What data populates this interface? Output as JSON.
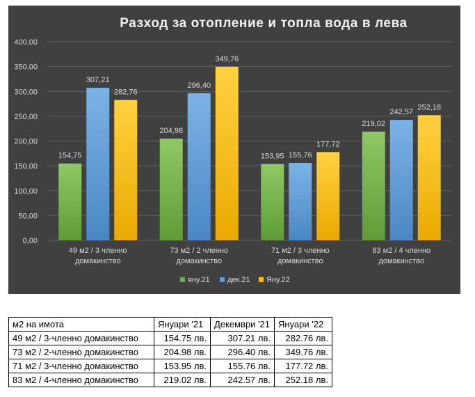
{
  "chart_data": {
    "type": "bar",
    "title": "Разход за отопление и топла вода в лева",
    "categories": [
      [
        "49 м2 / 3 членно",
        "домакинство"
      ],
      [
        "73 м2 / 2 членно",
        "домакинство"
      ],
      [
        "71 м2 / 3 членно",
        "домакинство"
      ],
      [
        "83 м2 / 4 членно",
        "домакинство"
      ]
    ],
    "series": [
      {
        "name": "яну.21",
        "values": [
          154.75,
          204.98,
          153.95,
          219.02
        ],
        "labels": [
          "154,75",
          "204,98",
          "153,95",
          "219,02"
        ],
        "color": "#70ad47"
      },
      {
        "name": "дек.21",
        "values": [
          307.21,
          296.4,
          155.76,
          242.57
        ],
        "labels": [
          "307,21",
          "296,40",
          "155,76",
          "242,57"
        ],
        "color": "#5b9bd5"
      },
      {
        "name": "Яну.22",
        "values": [
          282.76,
          349.76,
          177.72,
          252.18
        ],
        "labels": [
          "282,76",
          "349,76",
          "177,72",
          "252,18"
        ],
        "color": "#ffc000"
      }
    ],
    "ylim": [
      0,
      400
    ],
    "yticks": [
      "0,00",
      "50,00",
      "100,00",
      "150,00",
      "200,00",
      "250,00",
      "300,00",
      "350,00",
      "400,00"
    ],
    "grid": true,
    "legend_position": "bottom",
    "background": "#404040"
  },
  "table": {
    "headers": [
      "м2 на имота",
      "Януари '21",
      "Декември '21",
      "Януари '22"
    ],
    "rows": [
      [
        "49 м2 / 3-членно домакинство",
        "154.75 лв.",
        "307.21 лв.",
        "282.76 лв."
      ],
      [
        "73 м2 / 2-членно домакинство",
        "204.98 лв.",
        "296.40 лв.",
        "349.76 лв."
      ],
      [
        "71 м2 / 3-членно домакинство",
        "153.95 лв.",
        "155.76 лв.",
        "177.72 лв."
      ],
      [
        "83 м2 / 4-членно домакинство",
        "219.02 лв.",
        "242.57 лв.",
        "252.18 лв."
      ]
    ]
  }
}
